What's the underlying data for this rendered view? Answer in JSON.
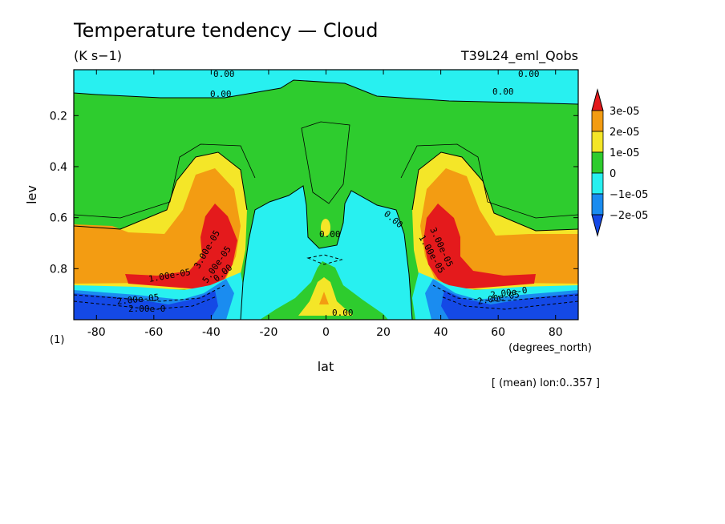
{
  "chart_data": {
    "type": "heatmap",
    "title": "Temperature tendency — Cloud",
    "units": "(K s−1)",
    "experiment": "T39L24_eml_Qobs",
    "xlabel": "lat",
    "x_units": "(degrees_north)",
    "ylabel": "lev",
    "y_units": "(1)",
    "footnote": "[ (mean) lon:0..357 ]",
    "xlim": [
      -87.9,
      87.9
    ],
    "ylim": [
      1.0,
      0.02
    ],
    "x_ticks": [
      "-80",
      "-60",
      "-40",
      "-20",
      "0",
      "20",
      "40",
      "60",
      "80"
    ],
    "y_ticks": [
      "0.2",
      "0.4",
      "0.6",
      "0.8"
    ],
    "colorbar": {
      "labels": [
        "3e-05",
        "2e-05",
        "1e-05",
        "0",
        "−1e-05",
        "−2e-05"
      ],
      "colors": [
        "#e41a1c",
        "#f39c12",
        "#f4e628",
        "#2ecc2e",
        "#28f0f0",
        "#1a8cf0",
        "#1449e6"
      ],
      "extend": "both"
    },
    "contour_labels": [
      "0.00",
      "0.00",
      "0.00",
      "0.00",
      "0.00",
      "0.00",
      "0.00",
      "1.00e-05",
      "2.00e-05",
      "2.00e-0",
      "3.00e-05",
      "5.00e-05",
      "1.00e-05",
      "2.00e-05",
      "2.00e-0",
      "3.00e-05",
      "0.00"
    ],
    "regions": [
      {
        "name": "upper negative layer",
        "level": "-1e-05",
        "lev_range": [
          0.02,
          0.1
        ]
      },
      {
        "name": "tropical upper positive tongue",
        "level": "0",
        "lat_range": [
          -12,
          12
        ],
        "lev_range": [
          0.2,
          0.75
        ]
      },
      {
        "name": "tropical lower negative column",
        "level": "-1e-05",
        "lat_range": [
          -32,
          32
        ],
        "lev_range": [
          0.55,
          1.0
        ]
      },
      {
        "name": "near-equator low-level positive",
        "level": "1e-05",
        "lat_range": [
          -8,
          8
        ],
        "lev_range": [
          0.82,
          0.98
        ]
      },
      {
        "name": "SH midlatitude heating",
        "level": "3e-05",
        "lat_range": [
          -70,
          -38
        ],
        "lev_range": [
          0.6,
          0.85
        ]
      },
      {
        "name": "NH midlatitude heating",
        "level": "3e-05",
        "lat_range": [
          38,
          70
        ],
        "lev_range": [
          0.6,
          0.85
        ]
      },
      {
        "name": "SH boundary-layer cooling",
        "level": "-2e-05",
        "lat_range": [
          -88,
          -45
        ],
        "lev_range": [
          0.85,
          1.0
        ]
      },
      {
        "name": "NH boundary-layer cooling",
        "level": "-2e-05",
        "lat_range": [
          45,
          88
        ],
        "lev_range": [
          0.85,
          1.0
        ]
      }
    ]
  }
}
